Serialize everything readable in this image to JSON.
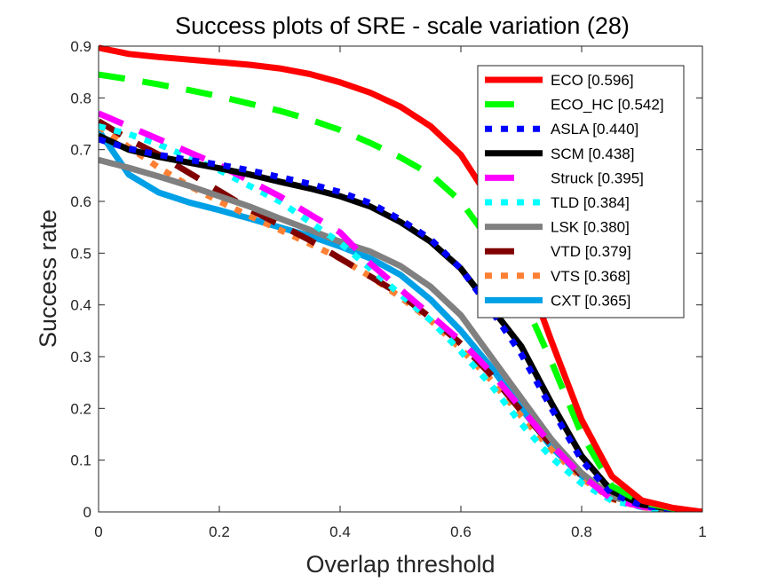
{
  "chart_data": {
    "type": "line",
    "title": "Success plots of SRE - scale variation (28)",
    "xlabel": "Overlap threshold",
    "ylabel": "Success rate",
    "xlim": [
      0,
      1
    ],
    "ylim": [
      0,
      0.9
    ],
    "xticks": [
      0,
      0.2,
      0.4,
      0.6,
      0.8,
      1
    ],
    "xtick_labels": [
      "0",
      "0.2",
      "0.4",
      "0.6",
      "0.8",
      "1"
    ],
    "yticks": [
      0,
      0.1,
      0.2,
      0.3,
      0.4,
      0.5,
      0.6,
      0.7,
      0.8,
      0.9
    ],
    "ytick_labels": [
      "0",
      "0.1",
      "0.2",
      "0.3",
      "0.4",
      "0.5",
      "0.6",
      "0.7",
      "0.8",
      "0.9"
    ],
    "grid": false,
    "legend_position": "top-right",
    "x": [
      0,
      0.05,
      0.1,
      0.15,
      0.2,
      0.25,
      0.3,
      0.35,
      0.4,
      0.45,
      0.5,
      0.55,
      0.6,
      0.65,
      0.7,
      0.75,
      0.8,
      0.85,
      0.9,
      0.95,
      1
    ],
    "series": [
      {
        "name": "ECO",
        "score": "0.596",
        "label": "ECO [0.596]",
        "color": "#ff0000",
        "style": "solid",
        "values": [
          0.897,
          0.885,
          0.879,
          0.874,
          0.869,
          0.864,
          0.857,
          0.846,
          0.83,
          0.81,
          0.783,
          0.745,
          0.69,
          0.6,
          0.49,
          0.33,
          0.178,
          0.069,
          0.022,
          0.008,
          0.0
        ]
      },
      {
        "name": "ECO_HC",
        "score": "0.542",
        "label": "ECO_HC [0.542]",
        "color": "#00ff00",
        "style": "dashed",
        "values": [
          0.845,
          0.836,
          0.826,
          0.815,
          0.803,
          0.789,
          0.775,
          0.758,
          0.738,
          0.713,
          0.685,
          0.652,
          0.6,
          0.52,
          0.42,
          0.29,
          0.15,
          0.05,
          0.018,
          0.007,
          0.0
        ]
      },
      {
        "name": "ASLA",
        "score": "0.440",
        "label": "ASLA [0.440]",
        "color": "#0000ff",
        "style": "dotted",
        "values": [
          0.72,
          0.702,
          0.69,
          0.68,
          0.671,
          0.66,
          0.647,
          0.634,
          0.618,
          0.597,
          0.565,
          0.527,
          0.47,
          0.39,
          0.305,
          0.2,
          0.1,
          0.035,
          0.012,
          0.005,
          0.0
        ]
      },
      {
        "name": "SCM",
        "score": "0.438",
        "label": "SCM [0.438]",
        "color": "#000000",
        "style": "solid",
        "values": [
          0.727,
          0.7,
          0.686,
          0.675,
          0.664,
          0.652,
          0.638,
          0.625,
          0.61,
          0.59,
          0.56,
          0.522,
          0.47,
          0.395,
          0.32,
          0.21,
          0.108,
          0.04,
          0.014,
          0.006,
          0.0
        ]
      },
      {
        "name": "Struck",
        "score": "0.395",
        "label": "Struck [0.395]",
        "color": "#ff00ff",
        "style": "dashed",
        "values": [
          0.77,
          0.745,
          0.72,
          0.695,
          0.67,
          0.64,
          0.61,
          0.575,
          0.54,
          0.48,
          0.43,
          0.38,
          0.33,
          0.27,
          0.2,
          0.13,
          0.07,
          0.025,
          0.01,
          0.004,
          0.0
        ]
      },
      {
        "name": "TLD",
        "score": "0.384",
        "label": "TLD [0.384]",
        "color": "#00ffff",
        "style": "dotted",
        "values": [
          0.745,
          0.73,
          0.71,
          0.685,
          0.66,
          0.63,
          0.6,
          0.56,
          0.52,
          0.47,
          0.42,
          0.37,
          0.31,
          0.245,
          0.17,
          0.105,
          0.055,
          0.022,
          0.009,
          0.003,
          0.0
        ]
      },
      {
        "name": "LSK",
        "score": "0.380",
        "label": "LSK [0.380]",
        "color": "#808080",
        "style": "solid",
        "values": [
          0.68,
          0.665,
          0.648,
          0.63,
          0.61,
          0.59,
          0.567,
          0.545,
          0.522,
          0.503,
          0.475,
          0.435,
          0.38,
          0.3,
          0.22,
          0.14,
          0.075,
          0.03,
          0.012,
          0.005,
          0.0
        ]
      },
      {
        "name": "VTD",
        "score": "0.379",
        "label": "VTD [0.379]",
        "color": "#800000",
        "style": "dashed",
        "values": [
          0.755,
          0.72,
          0.69,
          0.655,
          0.62,
          0.585,
          0.555,
          0.525,
          0.49,
          0.455,
          0.42,
          0.375,
          0.325,
          0.265,
          0.195,
          0.13,
          0.07,
          0.027,
          0.01,
          0.004,
          0.0
        ]
      },
      {
        "name": "VTS",
        "score": "0.368",
        "label": "VTS [0.368]",
        "color": "#ff8033",
        "style": "dotted",
        "values": [
          0.745,
          0.705,
          0.665,
          0.63,
          0.6,
          0.572,
          0.545,
          0.518,
          0.49,
          0.455,
          0.415,
          0.37,
          0.315,
          0.255,
          0.185,
          0.12,
          0.065,
          0.025,
          0.009,
          0.003,
          0.0
        ]
      },
      {
        "name": "CXT",
        "score": "0.365",
        "label": "CXT [0.365]",
        "color": "#00a0e6",
        "style": "solid",
        "values": [
          0.737,
          0.652,
          0.617,
          0.598,
          0.583,
          0.567,
          0.55,
          0.533,
          0.513,
          0.49,
          0.458,
          0.41,
          0.35,
          0.28,
          0.2,
          0.125,
          0.07,
          0.03,
          0.012,
          0.005,
          0.0
        ]
      }
    ]
  }
}
